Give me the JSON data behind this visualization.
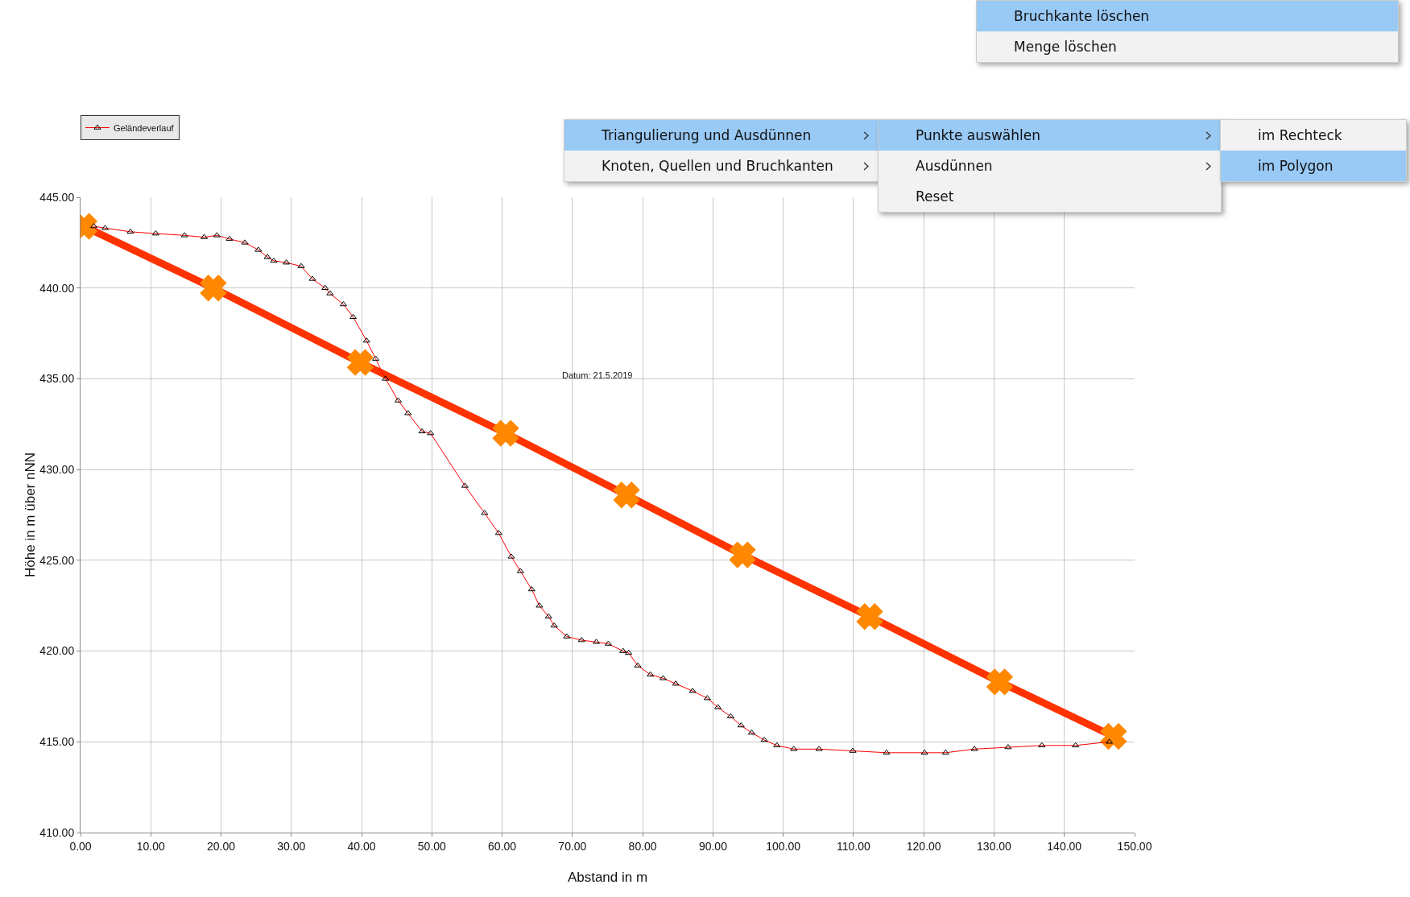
{
  "chart_data": {
    "type": "line",
    "xlabel": "Abstand in m",
    "ylabel": "Höhe in m über nNN",
    "xlim": [
      0,
      150
    ],
    "ylim": [
      410,
      445
    ],
    "xticks": [
      {
        "value": 0,
        "label": "0.00"
      },
      {
        "value": 10,
        "label": "10.00"
      },
      {
        "value": 20,
        "label": "20.00"
      },
      {
        "value": 30,
        "label": "30.00"
      },
      {
        "value": 40,
        "label": "40.00"
      },
      {
        "value": 50,
        "label": "50.00"
      },
      {
        "value": 60,
        "label": "60.00"
      },
      {
        "value": 70,
        "label": "70.00"
      },
      {
        "value": 80,
        "label": "80.00"
      },
      {
        "value": 90,
        "label": "90.00"
      },
      {
        "value": 100,
        "label": "100.00"
      },
      {
        "value": 110,
        "label": "110.00"
      },
      {
        "value": 120,
        "label": "120.00"
      },
      {
        "value": 130,
        "label": "130.00"
      },
      {
        "value": 140,
        "label": "140.00"
      },
      {
        "value": 150,
        "label": "150.00"
      }
    ],
    "yticks": [
      {
        "value": 410,
        "label": "410.00"
      },
      {
        "value": 415,
        "label": "415.00"
      },
      {
        "value": 420,
        "label": "420.00"
      },
      {
        "value": 425,
        "label": "425.00"
      },
      {
        "value": 430,
        "label": "430.00"
      },
      {
        "value": 435,
        "label": "435.00"
      },
      {
        "value": 440,
        "label": "440.00"
      },
      {
        "value": 445,
        "label": "445.00"
      }
    ],
    "grid": true,
    "legend": "top left",
    "line_style": "solid",
    "series": [
      {
        "name": "Geländeverlauf",
        "color": "#ff0000",
        "marker": "triangle",
        "x": [
          1.9,
          3.5,
          7.1,
          10.7,
          14.8,
          17.6,
          19.4,
          21.2,
          23.4,
          25.3,
          26.6,
          27.5,
          29.3,
          31.4,
          33.0,
          34.8,
          35.5,
          37.4,
          38.8,
          40.7,
          42.0,
          43.4,
          45.2,
          46.6,
          48.6,
          49.8,
          54.7,
          57.5,
          59.5,
          61.3,
          62.6,
          64.2,
          65.3,
          66.6,
          67.4,
          69.2,
          71.3,
          73.4,
          75.1,
          77.2,
          78.0,
          79.3,
          81.1,
          82.9,
          84.7,
          87.1,
          89.2,
          90.7,
          92.5,
          94.0,
          95.5,
          97.3,
          99.1,
          101.5,
          105.1,
          109.9,
          114.7,
          120.1,
          123.1,
          127.2,
          132.0,
          136.8,
          141.6,
          146.4
        ],
        "values": [
          443.4,
          443.3,
          443.1,
          443.0,
          442.9,
          442.8,
          442.9,
          442.7,
          442.5,
          442.1,
          441.7,
          441.5,
          441.4,
          441.2,
          440.5,
          440.0,
          439.7,
          439.1,
          438.4,
          437.1,
          436.1,
          435.0,
          433.8,
          433.1,
          432.1,
          432.0,
          429.1,
          427.6,
          426.5,
          425.2,
          424.4,
          423.4,
          422.5,
          421.9,
          421.4,
          420.8,
          420.6,
          420.5,
          420.4,
          420.0,
          419.9,
          419.2,
          418.7,
          418.5,
          418.2,
          417.8,
          417.4,
          416.9,
          416.4,
          415.9,
          415.5,
          415.1,
          414.8,
          414.6,
          414.6,
          414.5,
          414.4,
          414.4,
          414.4,
          414.6,
          414.7,
          414.8,
          414.8,
          415.0
        ]
      },
      {
        "color": "#ff3300",
        "marker": "cross",
        "x": [
          0.5,
          18.9,
          39.8,
          60.5,
          77.7,
          94.2,
          112.3,
          130.8,
          147.0
        ],
        "values": [
          443.4,
          440.0,
          435.9,
          432.0,
          428.6,
          425.3,
          421.9,
          418.3,
          415.3
        ]
      }
    ],
    "annotations": [
      "Datum: 21.5.2019",
      "Bruchkante löschen",
      "Menge löschen",
      "Triangulierung und Ausdünnen",
      "Knoten, Quellen und Bruchkanten",
      "Punkte auswählen",
      "Ausdünnen",
      "Reset",
      "im Rechteck",
      "im Polygon"
    ]
  }
}
